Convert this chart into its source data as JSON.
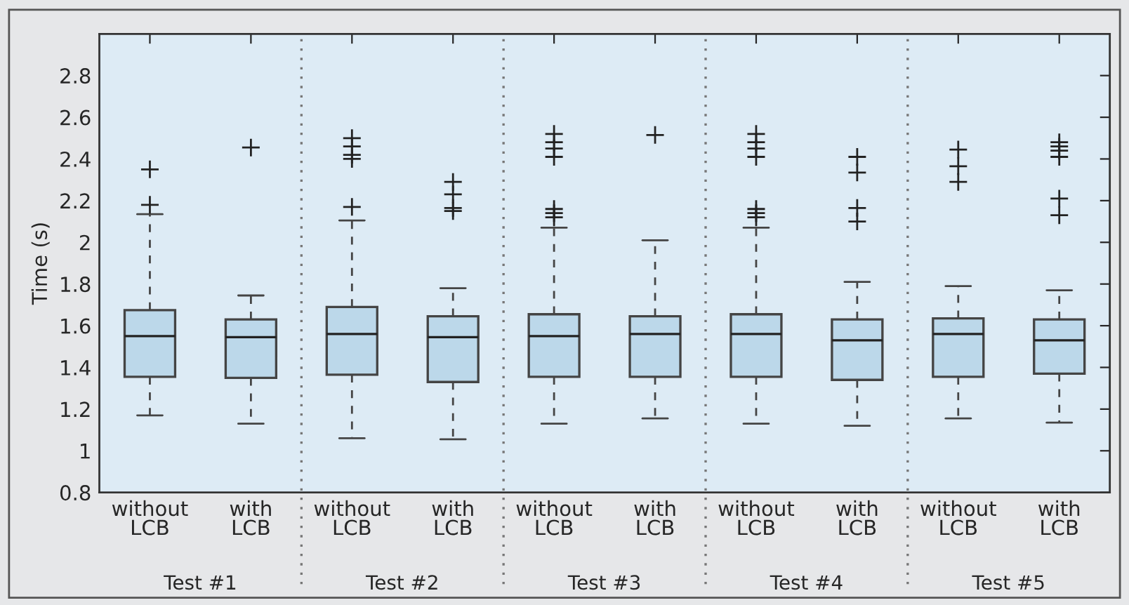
{
  "chart_data": {
    "type": "box",
    "categories": [
      "without\nLCB",
      "with\nLCB",
      "without\nLCB",
      "with\nLCB",
      "without\nLCB",
      "with\nLCB",
      "without\nLCB",
      "with\nLCB",
      "without\nLCB",
      "with\nLCB"
    ],
    "boxes": [
      {
        "low": 1.17,
        "q1": 1.355,
        "median": 1.55,
        "q3": 1.675,
        "high": 2.135,
        "outliers": [
          2.18,
          2.35
        ]
      },
      {
        "low": 1.13,
        "q1": 1.35,
        "median": 1.545,
        "q3": 1.63,
        "high": 1.745,
        "outliers": [
          2.455
        ]
      },
      {
        "low": 1.06,
        "q1": 1.365,
        "median": 1.56,
        "q3": 1.69,
        "high": 2.105,
        "outliers": [
          2.17,
          2.4,
          2.42,
          2.46,
          2.5
        ]
      },
      {
        "low": 1.055,
        "q1": 1.33,
        "median": 1.545,
        "q3": 1.645,
        "high": 1.78,
        "outliers": [
          2.15,
          2.165,
          2.23,
          2.29
        ]
      },
      {
        "low": 1.13,
        "q1": 1.355,
        "median": 1.55,
        "q3": 1.655,
        "high": 2.07,
        "outliers": [
          2.12,
          2.14,
          2.16,
          2.41,
          2.45,
          2.48,
          2.52
        ]
      },
      {
        "low": 1.155,
        "q1": 1.355,
        "median": 1.56,
        "q3": 1.645,
        "high": 2.01,
        "outliers": [
          2.515
        ]
      },
      {
        "low": 1.13,
        "q1": 1.355,
        "median": 1.56,
        "q3": 1.655,
        "high": 2.07,
        "outliers": [
          2.12,
          2.14,
          2.16,
          2.41,
          2.45,
          2.48,
          2.52
        ]
      },
      {
        "low": 1.12,
        "q1": 1.34,
        "median": 1.53,
        "q3": 1.63,
        "high": 1.81,
        "outliers": [
          2.1,
          2.165,
          2.335,
          2.41
        ]
      },
      {
        "low": 1.155,
        "q1": 1.355,
        "median": 1.56,
        "q3": 1.635,
        "high": 1.79,
        "outliers": [
          2.29,
          2.365,
          2.445
        ]
      },
      {
        "low": 1.135,
        "q1": 1.37,
        "median": 1.53,
        "q3": 1.63,
        "high": 1.77,
        "outliers": [
          2.13,
          2.21,
          2.41,
          2.44,
          2.46,
          2.48
        ]
      }
    ],
    "color": "#bcd8ea",
    "marker": "cross",
    "ylabel": "Time (s)",
    "ylim": [
      0.8,
      3.0
    ],
    "yticks": [
      0.8,
      1,
      1.2,
      1.4,
      1.6,
      1.8,
      2,
      2.2,
      2.4,
      2.6,
      2.8
    ],
    "annotations": [
      "Test #1",
      "Test #2",
      "Test #3",
      "Test #4",
      "Test #5"
    ]
  }
}
